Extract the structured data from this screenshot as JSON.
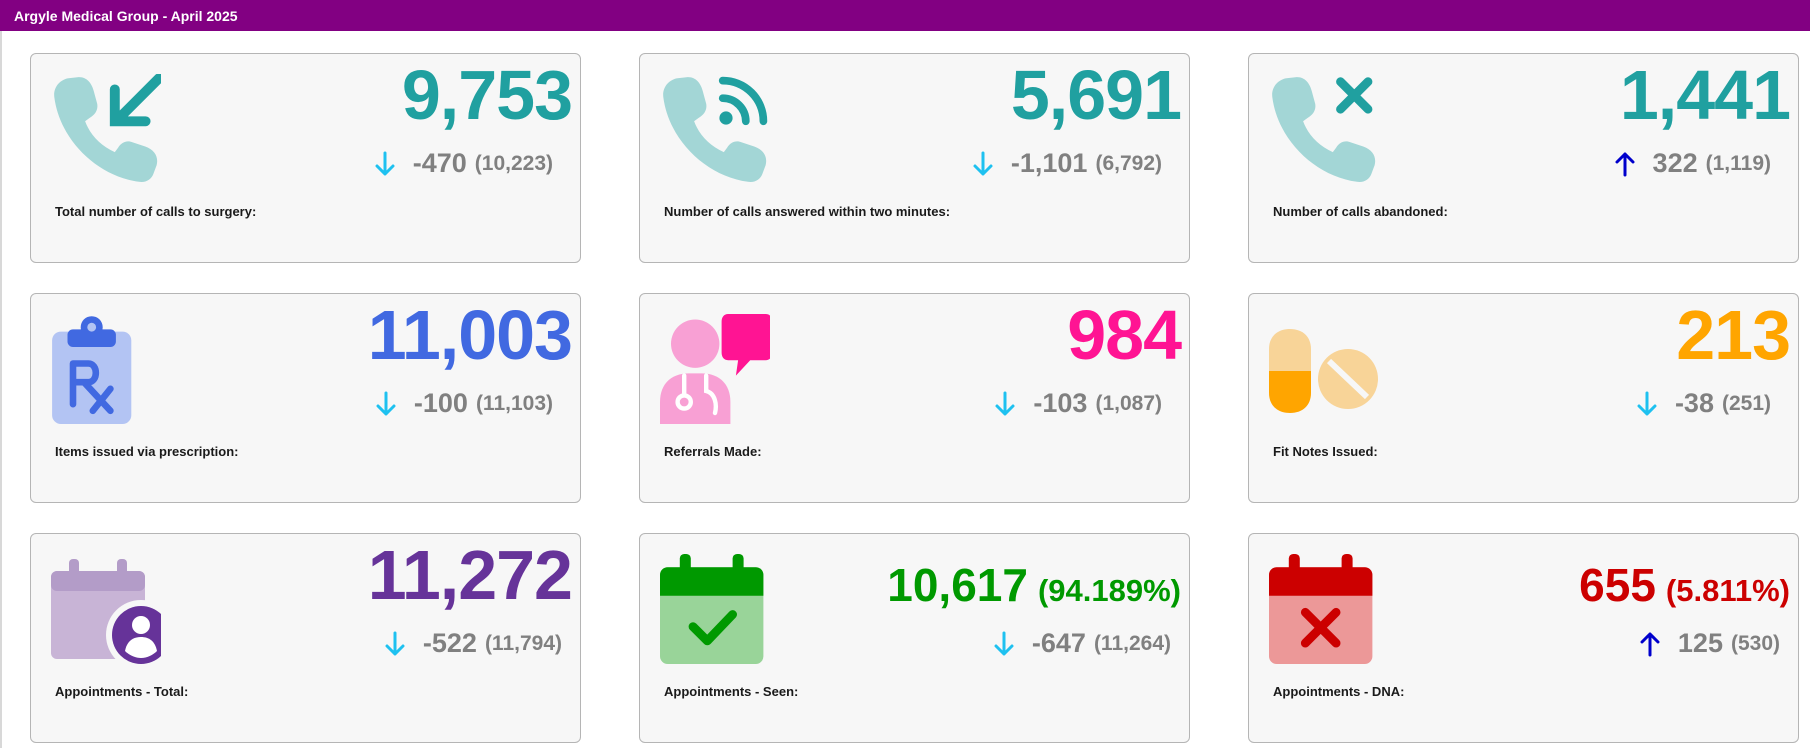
{
  "header": {
    "title": "Argyle Medical Group - April 2025"
  },
  "colors": {
    "header_bg": "#820082",
    "teal": "#20a0a0",
    "blue": "#4169e1",
    "pink": "#ff1493",
    "orange": "#ffa500",
    "purple": "#663399",
    "green": "#009900",
    "red": "#cc0000",
    "arrow_down": "#1ec1f0",
    "arrow_up": "#0000cc"
  },
  "cards": [
    {
      "icon": "phone-incoming-icon",
      "value": "9,753",
      "change_direction": "down",
      "change": "-470",
      "previous": "(10,223)",
      "label": "Total number of calls to surgery:"
    },
    {
      "icon": "phone-answered-icon",
      "value": "5,691",
      "change_direction": "down",
      "change": "-1,101",
      "previous": "(6,792)",
      "label": "Number of calls answered within two minutes:"
    },
    {
      "icon": "phone-abandoned-icon",
      "value": "1,441",
      "change_direction": "up",
      "change": "322",
      "previous": "(1,119)",
      "label": "Number of calls abandoned:"
    },
    {
      "icon": "prescription-clipboard-icon",
      "value": "11,003",
      "change_direction": "down",
      "change": "-100",
      "previous": "(11,103)",
      "label": "Items issued via prescription:"
    },
    {
      "icon": "doctor-referral-icon",
      "value": "984",
      "change_direction": "down",
      "change": "-103",
      "previous": "(1,087)",
      "label": "Referrals Made:"
    },
    {
      "icon": "pills-icon",
      "value": "213",
      "change_direction": "down",
      "change": "-38",
      "previous": "(251)",
      "label": "Fit Notes Issued:"
    },
    {
      "icon": "calendar-user-icon",
      "value": "11,272",
      "change_direction": "down",
      "change": "-522",
      "previous": "(11,794)",
      "label": "Appointments - Total:"
    },
    {
      "icon": "calendar-check-icon",
      "value": "10,617",
      "percent": "(94.189%)",
      "change_direction": "down",
      "change": "-647",
      "previous": "(11,264)",
      "label": "Appointments - Seen:"
    },
    {
      "icon": "calendar-cross-icon",
      "value": "655",
      "percent": "(5.811%)",
      "change_direction": "up",
      "change": "125",
      "previous": "(530)",
      "label": "Appointments - DNA:"
    }
  ]
}
